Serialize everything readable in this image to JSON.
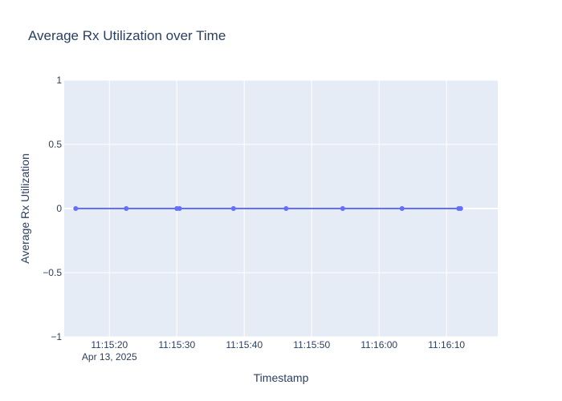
{
  "chart_data": {
    "type": "line",
    "title": "Average Rx Utilization over Time",
    "xlabel": "Timestamp",
    "ylabel": "Average Rx Utilization",
    "x_range": [
      "2025-04-13 11:15:13.3",
      "2025-04-13 11:16:17.6"
    ],
    "y_range": [
      -1,
      1
    ],
    "x_ticks": [
      {
        "value": "2025-04-13 11:15:20",
        "label": "11:15:20",
        "sublabel": "Apr 13, 2025"
      },
      {
        "value": "2025-04-13 11:15:30",
        "label": "11:15:30"
      },
      {
        "value": "2025-04-13 11:15:40",
        "label": "11:15:40"
      },
      {
        "value": "2025-04-13 11:15:50",
        "label": "11:15:50"
      },
      {
        "value": "2025-04-13 11:16:00",
        "label": "11:16:00"
      },
      {
        "value": "2025-04-13 11:16:10",
        "label": "11:16:10"
      }
    ],
    "y_ticks": [
      {
        "value": 1,
        "label": "1"
      },
      {
        "value": 0.5,
        "label": "0.5"
      },
      {
        "value": 0,
        "label": "0"
      },
      {
        "value": -0.5,
        "label": "−0.5"
      },
      {
        "value": -1,
        "label": "−1"
      }
    ],
    "grid": true,
    "series": [
      {
        "color": "#636efa",
        "x": [
          "2025-04-13 11:15:15",
          "2025-04-13 11:15:22.5",
          "2025-04-13 11:15:30",
          "2025-04-13 11:15:30.4",
          "2025-04-13 11:15:38.4",
          "2025-04-13 11:15:46.2",
          "2025-04-13 11:15:54.6",
          "2025-04-13 11:16:03.4",
          "2025-04-13 11:16:11.8",
          "2025-04-13 11:16:12.1"
        ],
        "y": [
          0,
          0,
          0,
          0,
          0,
          0,
          0,
          0,
          0,
          0
        ]
      }
    ]
  },
  "colors": {
    "plot_bg": "#e5ecf6",
    "grid": "#ffffff",
    "text": "#2a3f5f",
    "series": "#636efa"
  }
}
